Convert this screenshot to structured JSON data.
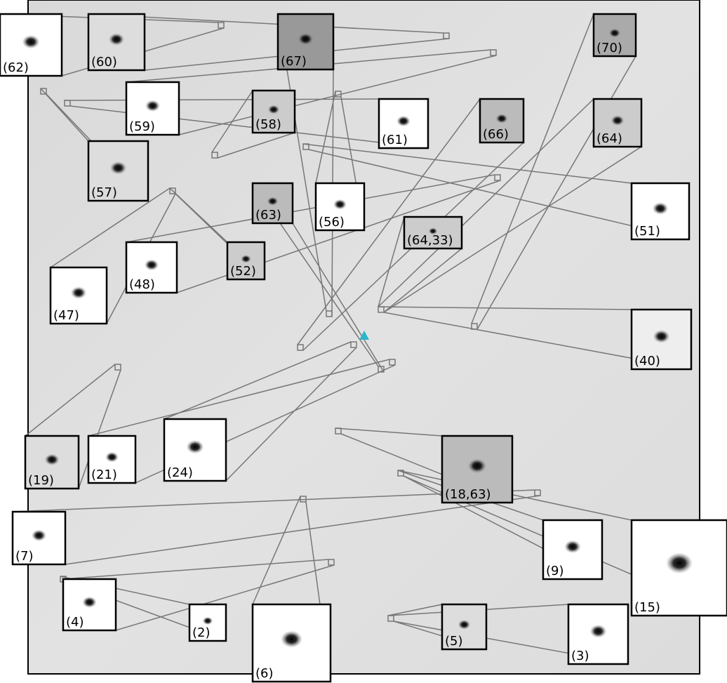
{
  "cutouts": [
    {
      "label": "(62)"
    },
    {
      "label": "(60)"
    },
    {
      "label": "(67)"
    },
    {
      "label": "(70)"
    },
    {
      "label": "(59)"
    },
    {
      "label": "(58)"
    },
    {
      "label": "(61)"
    },
    {
      "label": "(66)"
    },
    {
      "label": "(64)"
    },
    {
      "label": "(57)"
    },
    {
      "label": "(63)"
    },
    {
      "label": "(56)"
    },
    {
      "label": "(64,33)"
    },
    {
      "label": "(51)"
    },
    {
      "label": "(48)"
    },
    {
      "label": "(52)"
    },
    {
      "label": "(47)"
    },
    {
      "label": "(40)"
    },
    {
      "label": "(19)"
    },
    {
      "label": "(21)"
    },
    {
      "label": "(24)"
    },
    {
      "label": "(18,63)"
    },
    {
      "label": "(7)"
    },
    {
      "label": "(9)"
    },
    {
      "label": "(15)"
    },
    {
      "label": "(4)"
    },
    {
      "label": "(2)"
    },
    {
      "label": "(6)"
    },
    {
      "label": "(5)"
    },
    {
      "label": "(3)"
    }
  ]
}
